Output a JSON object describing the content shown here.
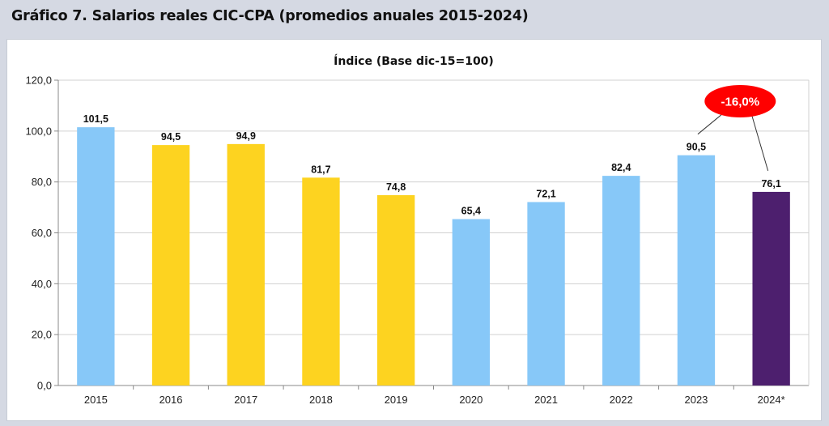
{
  "header": {
    "title": "Gráfico 7. Salarios reales CIC-CPA (promedios anuales 2015-2024)"
  },
  "chart_data": {
    "type": "bar",
    "title": "Índice (Base dic-15=100)",
    "xlabel": "",
    "ylabel": "",
    "ylim": [
      0,
      120
    ],
    "yticks": [
      "0,0",
      "20,0",
      "40,0",
      "60,0",
      "80,0",
      "100,0",
      "120,0"
    ],
    "ytick_values": [
      0,
      20,
      40,
      60,
      80,
      100,
      120
    ],
    "grid": true,
    "categories": [
      "2015",
      "2016",
      "2017",
      "2018",
      "2019",
      "2020",
      "2021",
      "2022",
      "2023",
      "2024*"
    ],
    "values": [
      101.5,
      94.5,
      94.9,
      81.7,
      74.8,
      65.4,
      72.1,
      82.4,
      90.5,
      76.1
    ],
    "value_labels": [
      "101,5",
      "94,5",
      "94,9",
      "81,7",
      "74,8",
      "65,4",
      "72,1",
      "82,4",
      "90,5",
      "76,1"
    ],
    "bar_colors": [
      "#87c8f8",
      "#fdd320",
      "#fdd320",
      "#fdd320",
      "#fdd320",
      "#87c8f8",
      "#87c8f8",
      "#87c8f8",
      "#87c8f8",
      "#4d1f6e"
    ],
    "annotation": {
      "text": "-16,0%",
      "color": "#ff0000",
      "from_category": "2023",
      "to_category": "2024*"
    }
  }
}
